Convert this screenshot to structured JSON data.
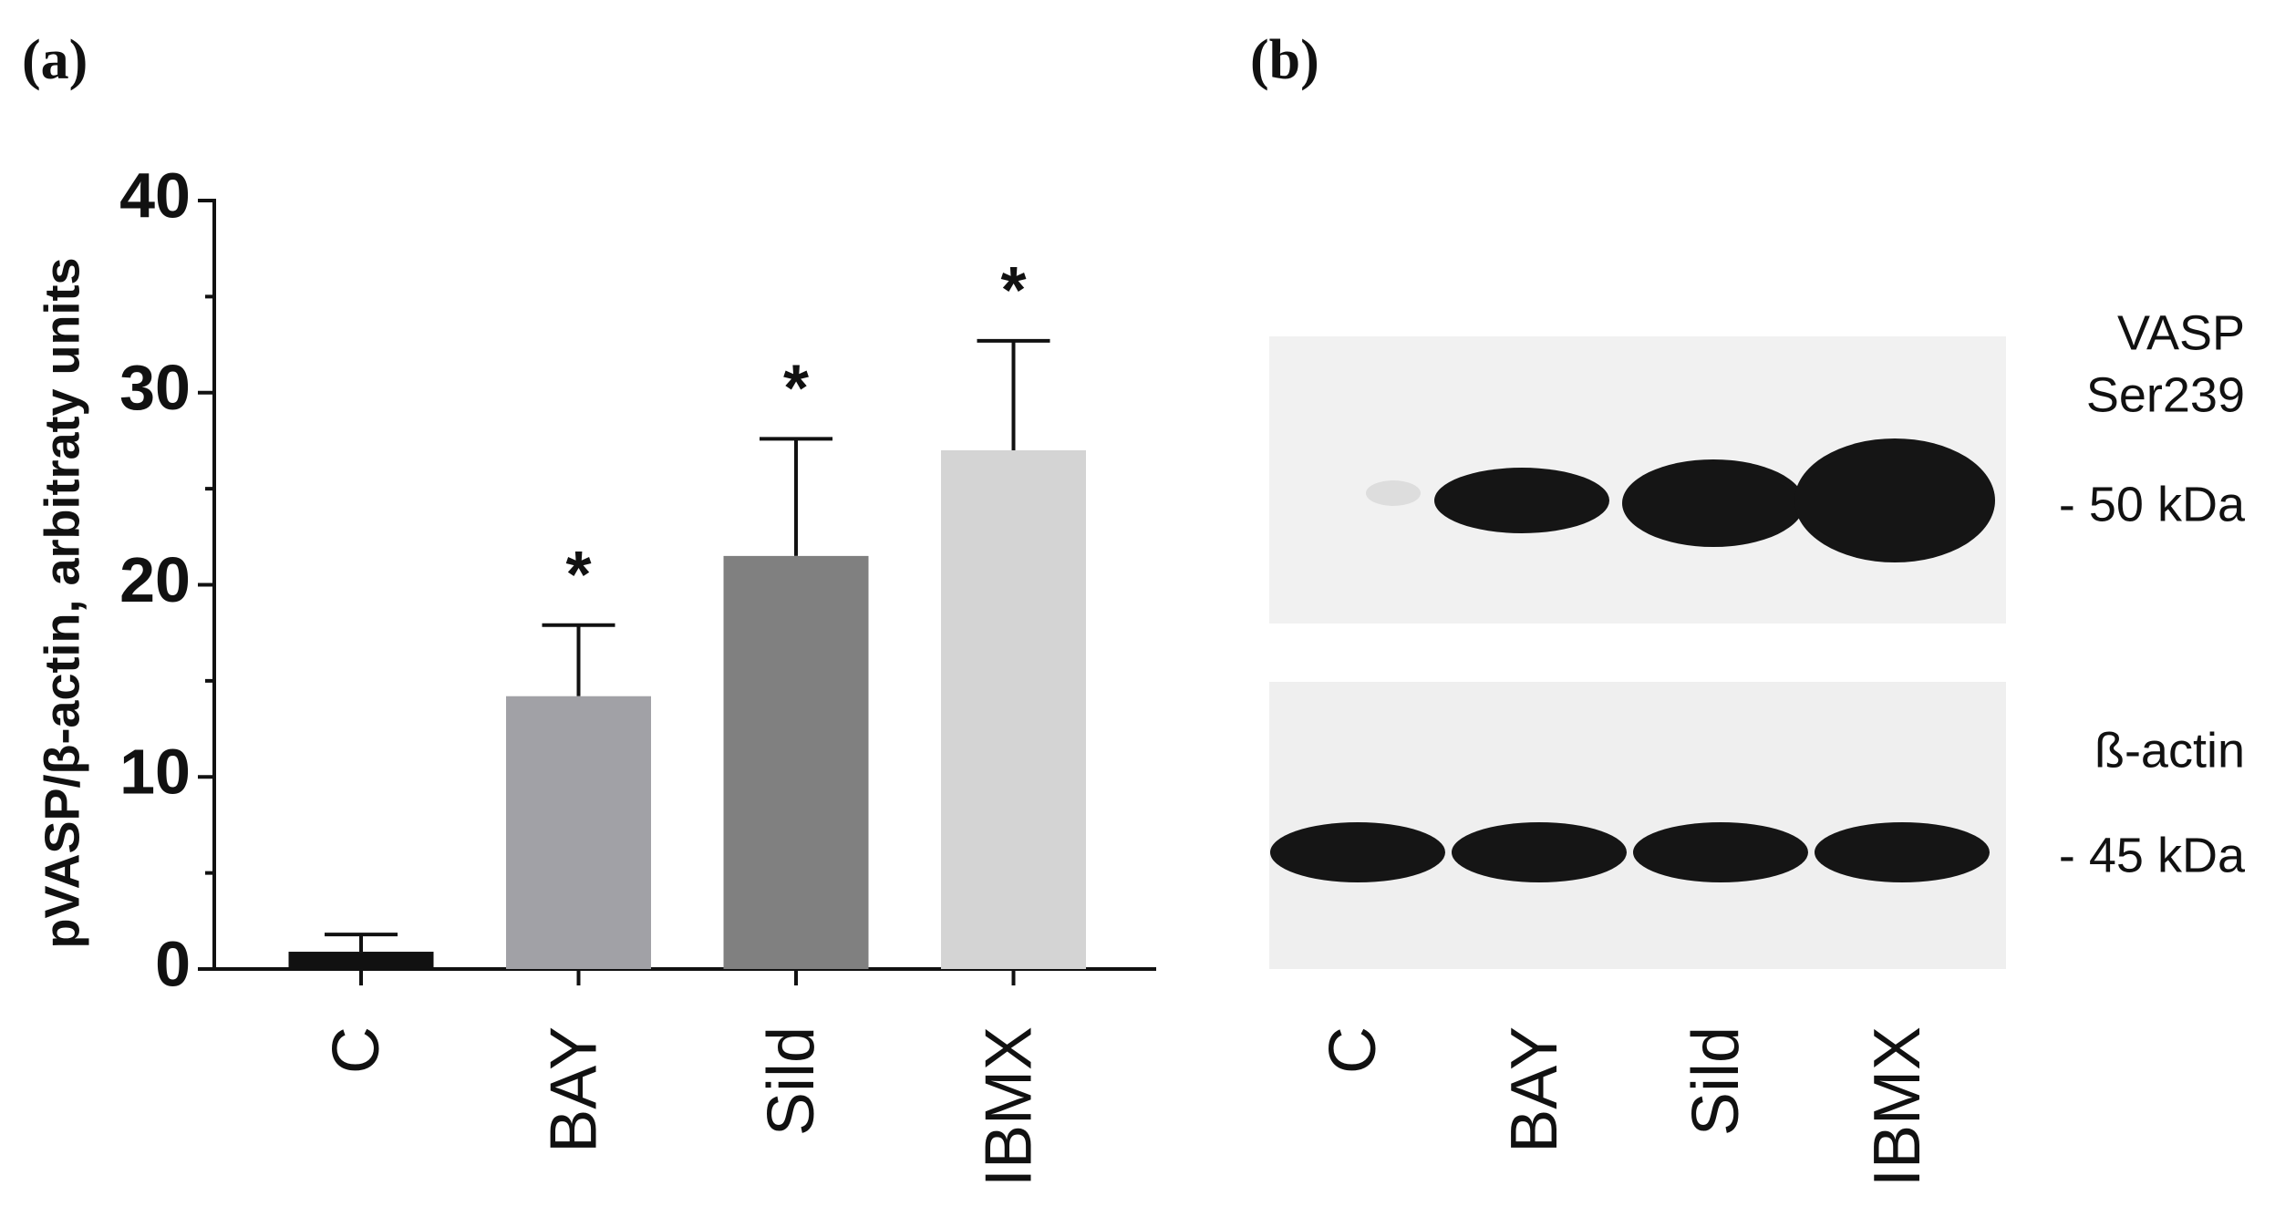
{
  "panels": {
    "a": "(a)",
    "b": "(b)"
  },
  "chart_data": {
    "type": "bar",
    "y_label": "pVASP/β-actin, arbitraty units",
    "categories": [
      "C",
      "BAY",
      "Sild",
      "IBMX"
    ],
    "values": [
      0.9,
      14.2,
      21.5,
      27.0
    ],
    "errors": [
      0.9,
      3.7,
      6.1,
      5.7
    ],
    "annotations": [
      null,
      "*",
      "*",
      "*"
    ],
    "colors": [
      "#111111",
      "#a1a1a6",
      "#808080",
      "#d4d4d4"
    ],
    "ylim": [
      0,
      40
    ],
    "yticks": [
      0,
      10,
      20,
      30,
      40
    ],
    "yticks_minor": [
      5,
      15,
      25,
      35
    ]
  },
  "blot": {
    "labels": [
      "VASP",
      "Ser239",
      "- 50 kDa",
      "ß-actin",
      "- 45 kDa"
    ],
    "lanes": [
      "C",
      "BAY",
      "Sild",
      "IBMX"
    ]
  }
}
